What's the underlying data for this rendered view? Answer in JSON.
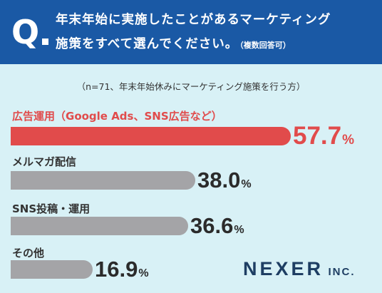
{
  "header": {
    "q_letter": "Q",
    "line1": "年末年始に実施したことがあるマーケティング",
    "line2": "施策をすべて選んでください。",
    "note": "（複数回答可）"
  },
  "sample_note": "（n=71、年末年始休みにマーケティング施策を行う方）",
  "colors": {
    "header": "#1a59a5",
    "background": "#d8f1f6",
    "highlight": "#e14b4b",
    "bar": "#a4a4a7"
  },
  "chart_data": {
    "type": "bar",
    "orientation": "horizontal",
    "unit": "%",
    "categories": [
      "広告運用（Google Ads、SNS広告など）",
      "メルマガ配信",
      "SNS投稿・運用",
      "その他"
    ],
    "values": [
      57.7,
      38.0,
      36.6,
      16.9
    ],
    "value_labels": [
      "57.7",
      "38.0",
      "36.6",
      "16.9"
    ]
  },
  "logo": {
    "main": "NEXER",
    "sub": "INC."
  }
}
